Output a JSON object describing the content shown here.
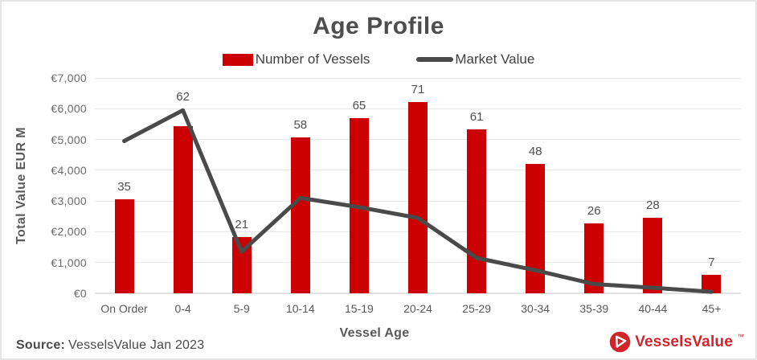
{
  "title": "Age Profile",
  "legend": {
    "bar_label": "Number of Vessels",
    "line_label": "Market Value"
  },
  "chart_data": {
    "type": "bar",
    "subtype": "bar+line combo",
    "title": "Age Profile",
    "xlabel": "Vessel Age",
    "ylabel": "Total Value EUR M",
    "categories": [
      "On Order",
      "0-4",
      "5-9",
      "10-14",
      "15-19",
      "20-24",
      "25-29",
      "30-34",
      "35-39",
      "40-44",
      "45+"
    ],
    "series": [
      {
        "name": "Number of Vessels",
        "type": "bar",
        "color": "#CC0000",
        "axis": "hidden secondary",
        "axis_max": 80,
        "values": [
          35,
          62,
          21,
          58,
          65,
          71,
          61,
          48,
          26,
          28,
          7
        ],
        "data_labels": [
          "35",
          "62",
          "21",
          "58",
          "65",
          "71",
          "61",
          "48",
          "26",
          "28",
          "7"
        ]
      },
      {
        "name": "Market Value",
        "type": "line",
        "color": "#4A4A4A",
        "axis": "left (Total Value EUR M)",
        "values": [
          4950,
          5950,
          1350,
          3100,
          2800,
          2450,
          1150,
          750,
          300,
          180,
          50
        ]
      }
    ],
    "ylim": [
      0,
      7000
    ],
    "y_ticks": [
      {
        "value": 0,
        "label": "€0"
      },
      {
        "value": 1000,
        "label": "€1,000"
      },
      {
        "value": 2000,
        "label": "€2,000"
      },
      {
        "value": 3000,
        "label": "€3,000"
      },
      {
        "value": 4000,
        "label": "€4,000"
      },
      {
        "value": 5000,
        "label": "€5,000"
      },
      {
        "value": 6000,
        "label": "€6,000"
      },
      {
        "value": 7000,
        "label": "€7,000"
      }
    ],
    "grid": "horizontal gridlines on",
    "legend_position": "top center"
  },
  "footer": {
    "source_label": "Source:",
    "source_text": "VesselsValue Jan 2023",
    "logo_text": "VesselsValue",
    "logo_tm": "™"
  },
  "colors": {
    "bar_red": "#CC0000",
    "line_gray": "#4A4A4A",
    "title_gray": "#4D4D4D",
    "logo_red": "#D2232A"
  }
}
